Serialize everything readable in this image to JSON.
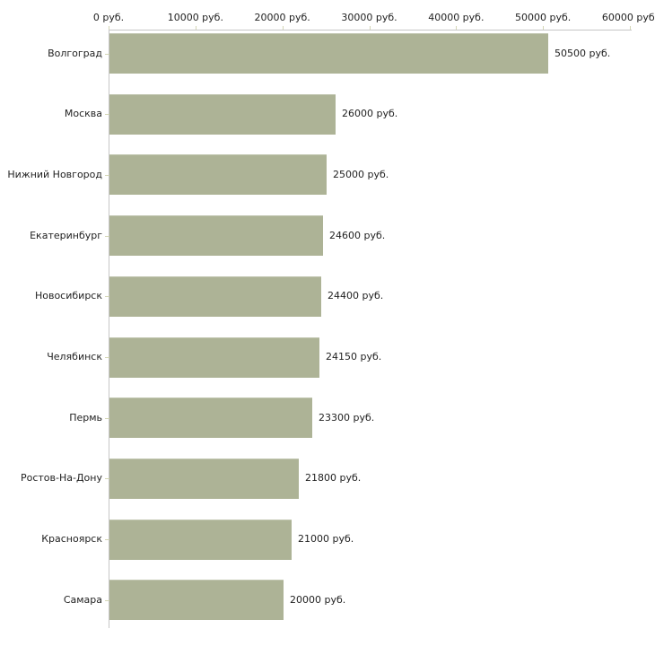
{
  "chart_data": {
    "type": "bar",
    "orientation": "horizontal",
    "title": "",
    "xlabel": "",
    "ylabel": "",
    "grid": false,
    "legend": false,
    "categories": [
      "Волгоград",
      "Москва",
      "Нижний Новгород",
      "Екатеринбург",
      "Новосибирск",
      "Челябинск",
      "Пермь",
      "Ростов-На-Дону",
      "Красноярск",
      "Самара"
    ],
    "values": [
      50500,
      26000,
      25000,
      24600,
      24400,
      24150,
      23300,
      21800,
      21000,
      20000
    ],
    "value_labels": [
      "50500 руб.",
      "26000 руб.",
      "25000 руб.",
      "24600 руб.",
      "24400 руб.",
      "24150 руб.",
      "23300 руб.",
      "21800 руб.",
      "21000 руб.",
      "20000 руб."
    ],
    "x_axis": {
      "position": "top",
      "min": 0,
      "max": 60000,
      "tick_step": 10000,
      "tick_labels": [
        "0 руб.",
        "10000 руб.",
        "20000 руб.",
        "30000 руб.",
        "40000 руб.",
        "50000 руб.",
        "60000 руб."
      ]
    },
    "colors": {
      "bar": "#adb396",
      "axis": "#c6c6c6",
      "tick": "#d4d6b6",
      "text": "#222222",
      "background": "#ffffff"
    }
  }
}
